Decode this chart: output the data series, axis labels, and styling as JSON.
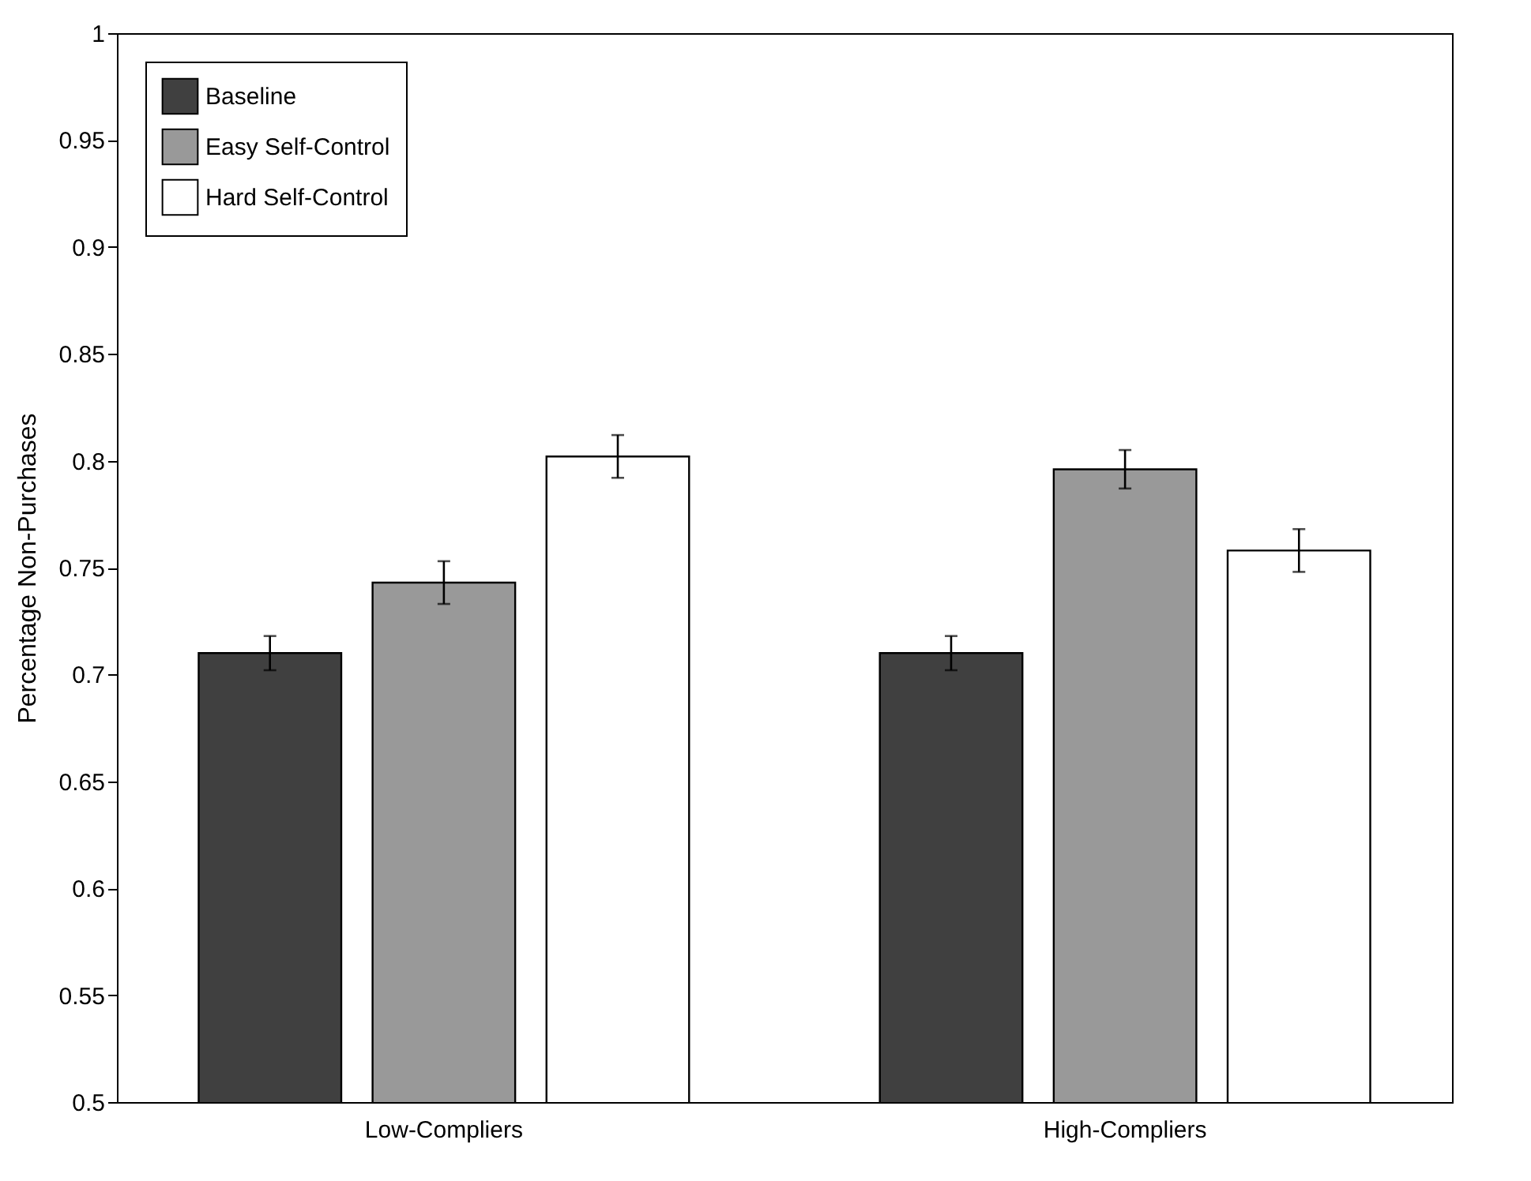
{
  "chart_data": {
    "type": "bar",
    "ylabel": "Percentage Non-Purchases",
    "categories": [
      "Low-Compliers",
      "High-Compliers"
    ],
    "series": [
      {
        "name": "Baseline",
        "color": "#404040",
        "values": [
          0.71,
          0.71
        ],
        "errors": [
          0.008,
          0.008
        ]
      },
      {
        "name": "Easy Self-Control",
        "color": "#999999",
        "values": [
          0.743,
          0.796
        ],
        "errors": [
          0.01,
          0.009
        ]
      },
      {
        "name": "Hard Self-Control",
        "color": "#ffffff",
        "values": [
          0.802,
          0.758
        ],
        "errors": [
          0.01,
          0.01
        ]
      }
    ],
    "ylim": [
      0.5,
      1
    ],
    "yticks": [
      0.5,
      0.55,
      0.6,
      0.65,
      0.7,
      0.75,
      0.8,
      0.85,
      0.9,
      0.95,
      1
    ],
    "legend": "top left",
    "grid": false
  }
}
